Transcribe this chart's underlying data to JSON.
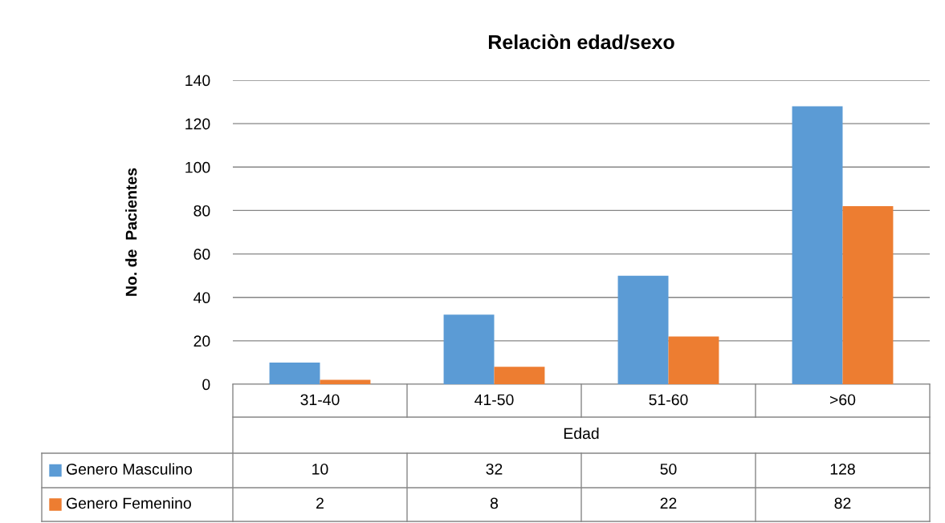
{
  "chart_data": {
    "type": "bar",
    "title": "Relaciòn edad/sexo",
    "xlabel": "Edad",
    "ylabel": "No. de  Pacientes",
    "categories": [
      "31-40",
      "41-50",
      "51-60",
      ">60"
    ],
    "series": [
      {
        "name": "Genero Masculino",
        "color": "#5b9bd5",
        "values": [
          10,
          32,
          50,
          128
        ]
      },
      {
        "name": "Genero Femenino",
        "color": "#ed7d31",
        "values": [
          2,
          8,
          22,
          82
        ]
      }
    ],
    "ylim": [
      0,
      140
    ],
    "yticks": [
      0,
      20,
      40,
      60,
      80,
      100,
      120,
      140
    ],
    "grid": "y",
    "legend": "bottom",
    "data_labels": true
  }
}
